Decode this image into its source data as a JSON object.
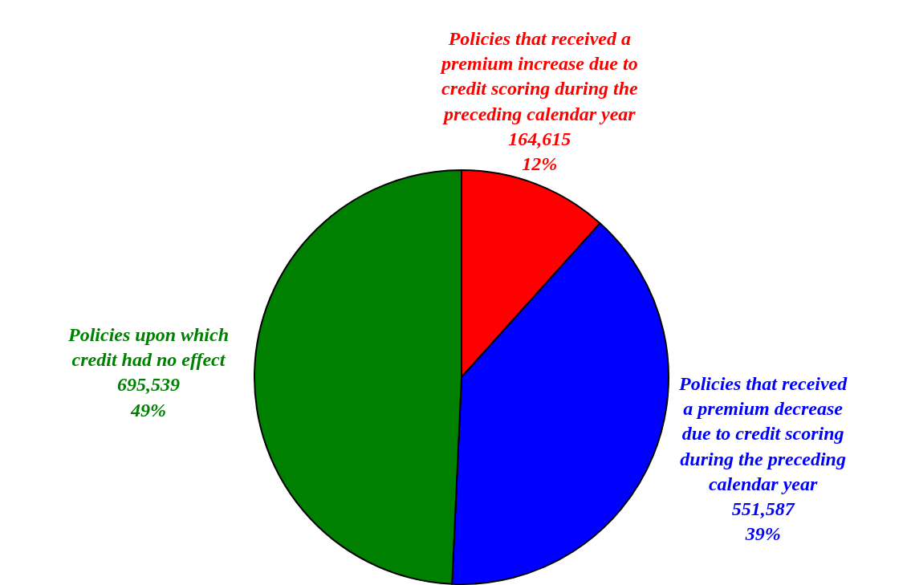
{
  "chart_data": {
    "type": "pie",
    "categories": [
      "Policies that received a\npremium increase due to\ncredit scoring during the\npreceding calendar year",
      "Policies that received\na premium decrease\ndue to credit scoring\nduring the preceding\ncalendar year",
      "Policies upon which\ncredit had no effect"
    ],
    "values": [
      164615,
      551587,
      695539
    ],
    "value_labels": [
      "164,615\n12%",
      "551,587\n39%",
      "695,539\n49%"
    ],
    "colors": [
      "#ff0000",
      "#0000ff",
      "#008000"
    ],
    "legend": false
  }
}
